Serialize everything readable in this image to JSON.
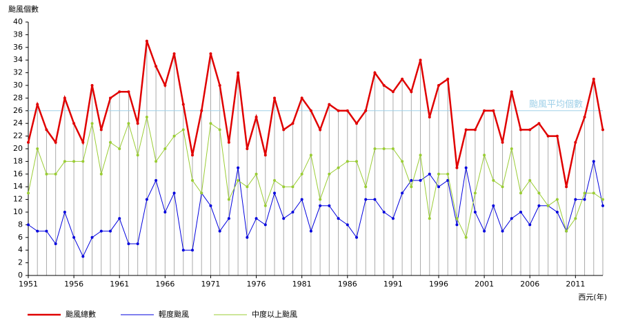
{
  "chart_data": {
    "type": "line",
    "y_label": "颱風個數",
    "x_label": "西元(年)",
    "x": [
      1951,
      1952,
      1953,
      1954,
      1955,
      1956,
      1957,
      1958,
      1959,
      1960,
      1961,
      1962,
      1963,
      1964,
      1965,
      1966,
      1967,
      1968,
      1969,
      1970,
      1971,
      1972,
      1973,
      1974,
      1975,
      1976,
      1977,
      1978,
      1979,
      1980,
      1981,
      1982,
      1983,
      1984,
      1985,
      1986,
      1987,
      1988,
      1989,
      1990,
      1991,
      1992,
      1993,
      1994,
      1995,
      1996,
      1997,
      1998,
      1999,
      2000,
      2001,
      2002,
      2003,
      2004,
      2005,
      2006,
      2007,
      2008,
      2009,
      2010,
      2011,
      2012,
      2013,
      2014
    ],
    "series": [
      {
        "name": "颱風總數",
        "color": "#e00000",
        "values": [
          21,
          27,
          23,
          21,
          28,
          24,
          21,
          30,
          23,
          28,
          29,
          29,
          24,
          37,
          33,
          30,
          35,
          27,
          19,
          26,
          35,
          30,
          21,
          32,
          20,
          25,
          19,
          28,
          23,
          24,
          28,
          26,
          23,
          27,
          26,
          26,
          24,
          26,
          32,
          30,
          29,
          31,
          29,
          34,
          25,
          30,
          31,
          17,
          23,
          23,
          26,
          26,
          21,
          29,
          23,
          23,
          24,
          22,
          22,
          14,
          21,
          25,
          31,
          23
        ]
      },
      {
        "name": "輕度颱風",
        "color": "#0000dd",
        "values": [
          8,
          7,
          7,
          5,
          10,
          6,
          3,
          6,
          7,
          7,
          9,
          5,
          5,
          12,
          15,
          10,
          13,
          4,
          4,
          13,
          11,
          7,
          9,
          17,
          6,
          9,
          8,
          13,
          9,
          10,
          12,
          7,
          11,
          11,
          9,
          8,
          6,
          12,
          12,
          10,
          9,
          13,
          15,
          15,
          16,
          14,
          15,
          8,
          17,
          10,
          7,
          11,
          7,
          9,
          10,
          8,
          11,
          11,
          10,
          7,
          12,
          12,
          18,
          11
        ]
      },
      {
        "name": "中度以上颱風",
        "color": "#99cc33",
        "values": [
          13,
          20,
          16,
          16,
          18,
          18,
          18,
          24,
          16,
          21,
          20,
          24,
          19,
          25,
          18,
          20,
          22,
          23,
          15,
          13,
          24,
          23,
          12,
          15,
          14,
          16,
          11,
          15,
          14,
          14,
          16,
          19,
          12,
          16,
          17,
          18,
          18,
          14,
          20,
          20,
          20,
          18,
          14,
          19,
          9,
          16,
          16,
          9,
          6,
          13,
          19,
          15,
          14,
          20,
          13,
          15,
          13,
          11,
          12,
          7,
          9,
          13,
          13,
          12
        ]
      }
    ],
    "average": {
      "value": 26,
      "label": "颱風平均個數",
      "color": "#9fd0e8"
    },
    "xlim": [
      1951,
      2014
    ],
    "xticks": [
      1951,
      1956,
      1961,
      1966,
      1971,
      1976,
      1981,
      1986,
      1991,
      1996,
      2001,
      2006,
      2011
    ],
    "ylim": [
      0,
      40
    ],
    "yticks": [
      0,
      2,
      4,
      6,
      8,
      10,
      12,
      14,
      16,
      18,
      20,
      22,
      24,
      26,
      28,
      30,
      32,
      34,
      36,
      38,
      40
    ]
  }
}
